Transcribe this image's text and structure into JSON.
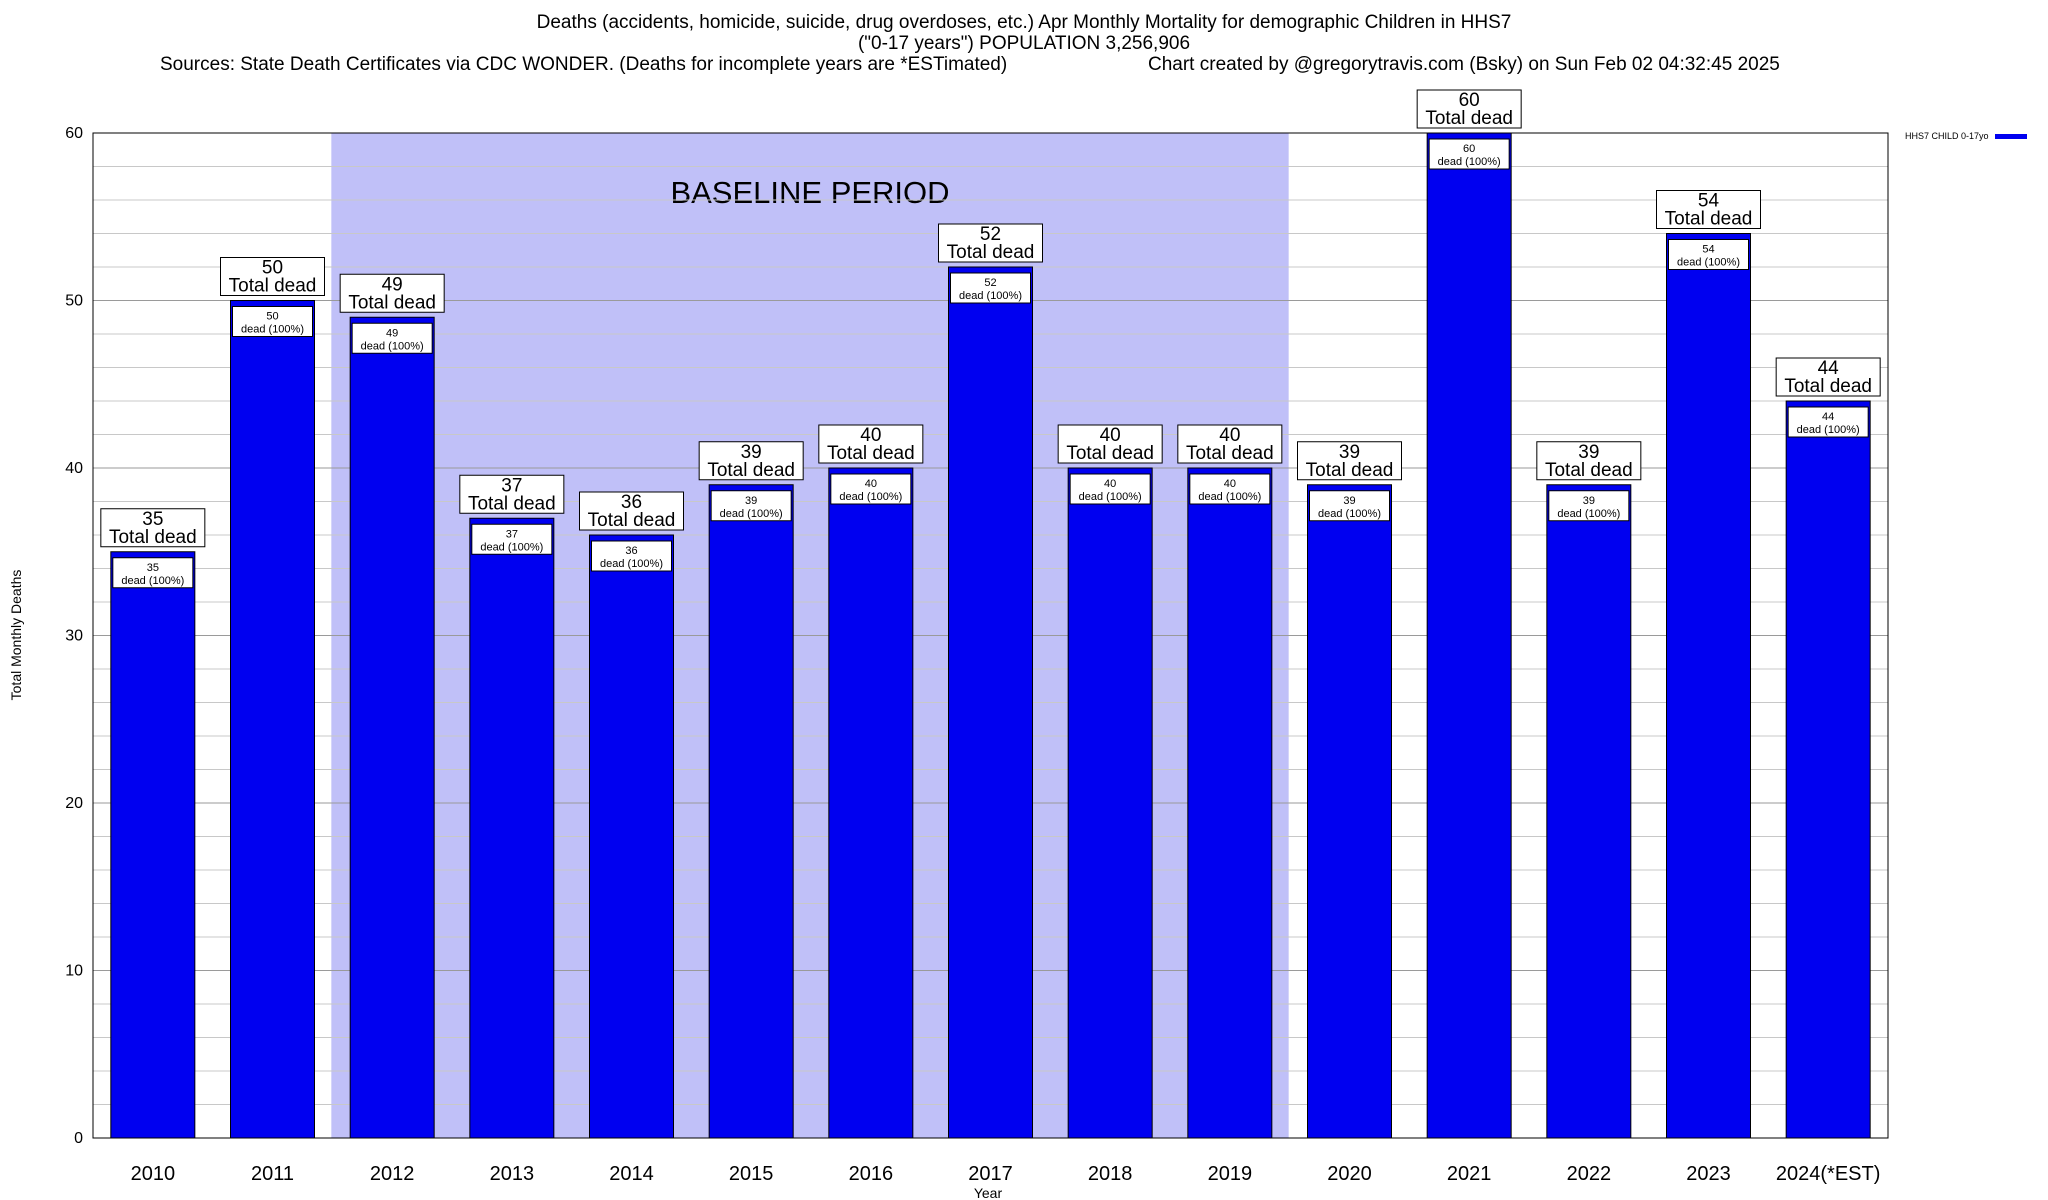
{
  "header": {
    "title_line1": "Deaths (accidents, homicide, suicide, drug overdoses, etc.) Apr Monthly Mortality for demographic Children in HHS7",
    "title_line2": "(\"0-17 years\") POPULATION 3,256,906",
    "sources": "Sources: State Death Certificates via CDC WONDER. (Deaths for incomplete years are *ESTimated)",
    "credit": "Chart created by @gregorytravis.com (Bsky) on Sun Feb 02 04:32:45 2025"
  },
  "chart_data": {
    "type": "bar",
    "title": "Deaths (accidents, homicide, suicide, drug overdoses, etc.) Apr Monthly Mortality for demographic Children in HHS7",
    "xlabel": "Year",
    "ylabel": "Total Monthly Deaths",
    "ylim": [
      0,
      60
    ],
    "yticks": [
      0,
      10,
      20,
      30,
      40,
      50,
      60
    ],
    "grid": true,
    "legend_placement": "top-right",
    "categories": [
      "2010",
      "2011",
      "2012",
      "2013",
      "2014",
      "2015",
      "2016",
      "2017",
      "2018",
      "2019",
      "2020",
      "2021",
      "2022",
      "2023",
      "2024(*EST)"
    ],
    "series": [
      {
        "name": "HHS7 CHILD 0-17yo",
        "values": [
          35,
          50,
          49,
          37,
          36,
          39,
          40,
          52,
          40,
          40,
          39,
          60,
          39,
          54,
          44
        ],
        "color": "#0000f0"
      }
    ],
    "total_label": "Total dead",
    "inner_label": "dead (100%)",
    "baseline": {
      "label": "BASELINE PERIOD",
      "start": "2012",
      "end": "2019",
      "color": "#c0c0f8"
    }
  }
}
